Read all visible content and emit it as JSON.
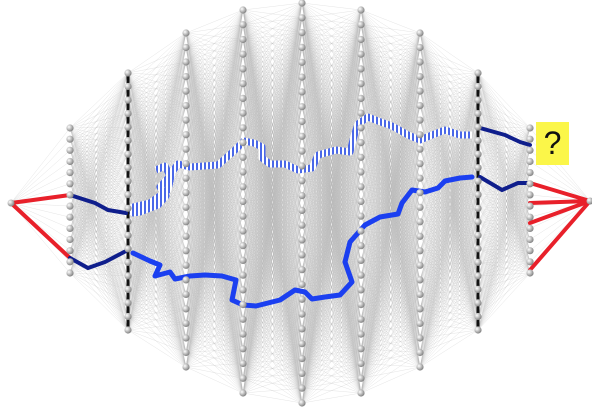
{
  "diagram": {
    "question_label": "?"
  },
  "colors": {
    "background": "#ffffff",
    "node_fill": "#a7a7a7",
    "node_highlight": "#ffffff",
    "edge": "#b8b8b8",
    "output_edges": "#e8202a",
    "path_dark": "#0f1e8c",
    "path_bright": "#1b3ff0",
    "path_hatched": "#4a68e8",
    "barrier": "#111111",
    "question_box": "#fbf649"
  }
}
